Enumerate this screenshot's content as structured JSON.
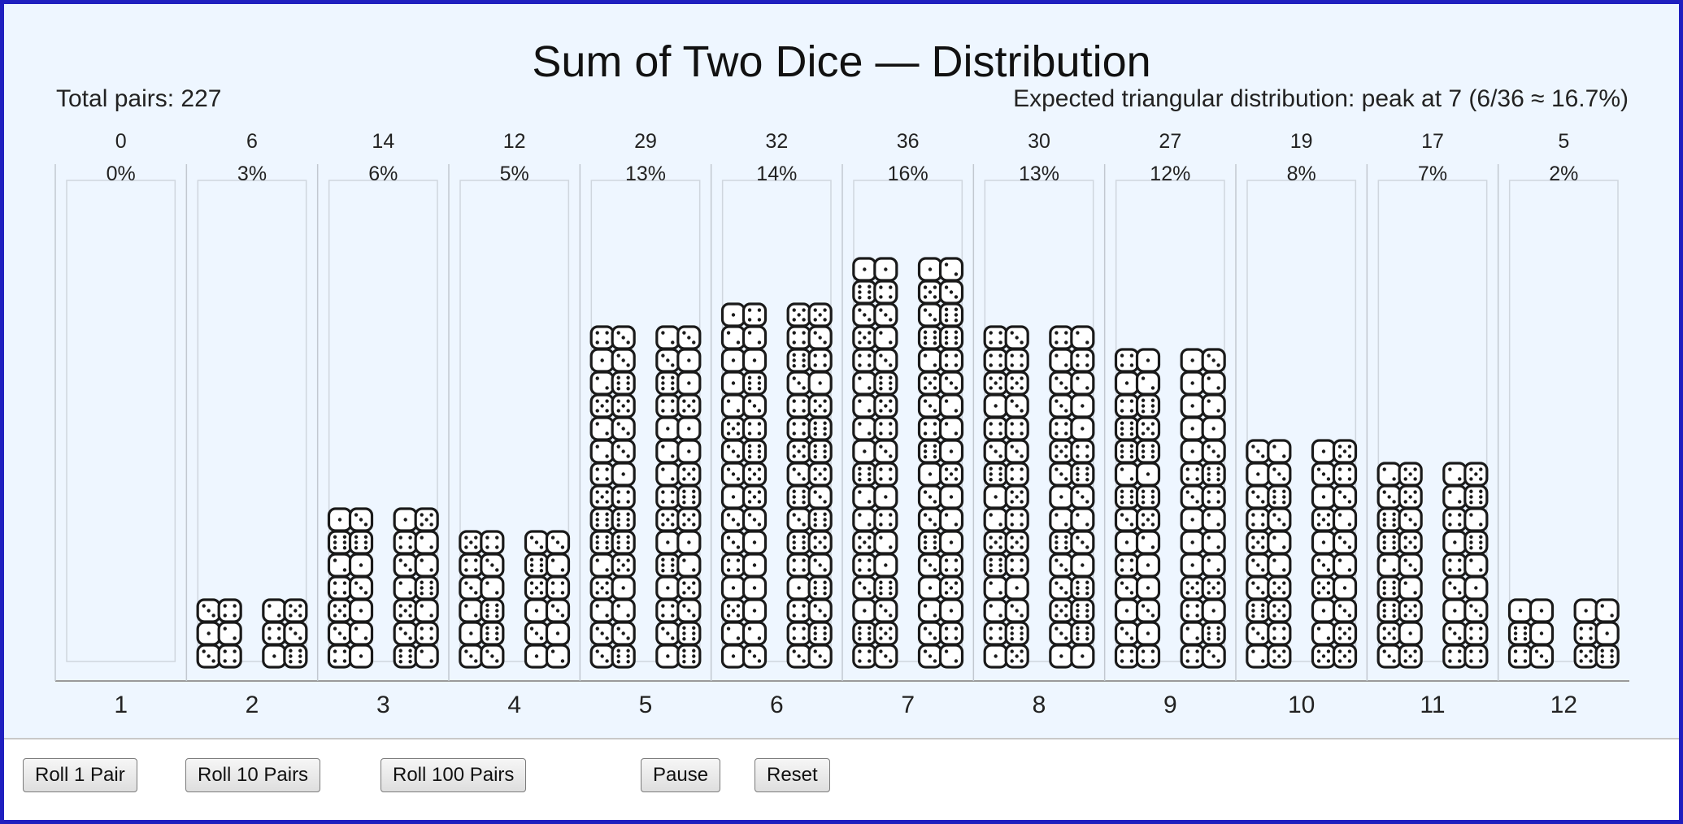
{
  "header": {
    "title": "Sum of Two Dice — Distribution",
    "total_label": "Total pairs: 227",
    "expected_label": "Expected triangular distribution: peak at 7 (6/36 ≈ 16.7%)"
  },
  "controls": {
    "roll1": "Roll 1 Pair",
    "roll10": "Roll 10 Pairs",
    "roll100": "Roll 100 Pairs",
    "pause": "Pause",
    "reset": "Reset"
  },
  "colors": {
    "background": "#eef6ff",
    "die_fill": "#ffffff",
    "die_stroke": "#1a1a1a",
    "column_outline": "#cfd6de",
    "frame": "#1f1fbf"
  },
  "chart_data": {
    "type": "bar",
    "categories": [
      "1",
      "2",
      "3",
      "4",
      "5",
      "6",
      "7",
      "8",
      "9",
      "10",
      "11",
      "12"
    ],
    "counts": [
      0,
      6,
      14,
      12,
      29,
      32,
      36,
      30,
      27,
      19,
      17,
      5
    ],
    "percent_labels": [
      "0%",
      "3%",
      "6%",
      "5%",
      "13%",
      "14%",
      "16%",
      "13%",
      "12%",
      "8%",
      "7%",
      "2%"
    ],
    "total": 227,
    "bar_style": "stacked dice icons, drawn as two columns of dice per sum"
  }
}
